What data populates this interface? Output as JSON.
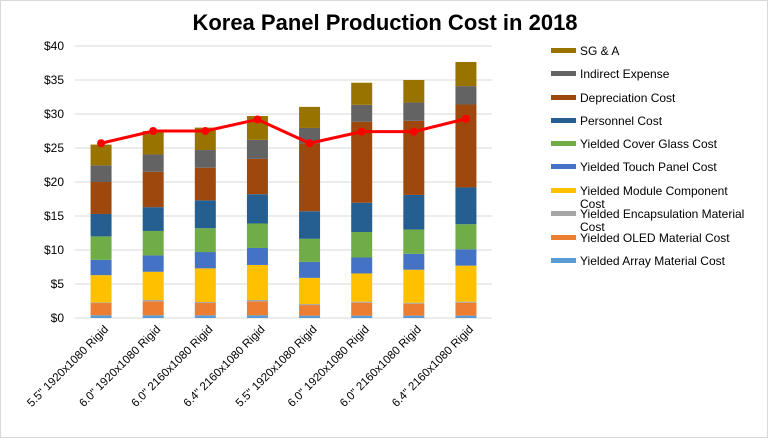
{
  "chart_data": {
    "type": "bar",
    "stacked": true,
    "title": "Korea  Panel Production Cost in 2018",
    "xlabel": "",
    "ylabel": "",
    "ylim": [
      0,
      40
    ],
    "yticks": [
      "$0",
      "$5",
      "$10",
      "$15",
      "$20",
      "$25",
      "$30",
      "$35",
      "$40"
    ],
    "ytick_values": [
      0,
      5,
      10,
      15,
      20,
      25,
      30,
      35,
      40
    ],
    "grid": true,
    "legend_position": "right",
    "categories": [
      "5.5\" 1920x1080 Rigid",
      "6.0\" 1920x1080 Rigid",
      "6.0\" 2160x1080 Rigid",
      "6.4\" 2160x1080 Rigid",
      "5.5\" 1920x1080 Rigid",
      "6.0\" 1920x1080 Rigid",
      "6.0\" 2160x1080 Rigid",
      "6.4\" 2160x1080 Rigid"
    ],
    "series": [
      {
        "name": "Yielded Array Material Cost",
        "color": "#5B9BD5",
        "values": [
          0.4,
          0.4,
          0.4,
          0.4,
          0.35,
          0.35,
          0.35,
          0.35
        ]
      },
      {
        "name": "Yielded OLED Material Cost",
        "color": "#ED7D31",
        "values": [
          1.8,
          2.05,
          1.8,
          2.05,
          1.55,
          1.9,
          1.75,
          1.9
        ]
      },
      {
        "name": "Yielded Encapsulation Material Cost",
        "color": "#A5A5A5",
        "values": [
          0.1,
          0.2,
          0.15,
          0.2,
          0.15,
          0.15,
          0.15,
          0.15
        ]
      },
      {
        "name": "Yielded Module Component Cost",
        "color": "#FFC000",
        "values": [
          4.0,
          4.15,
          4.95,
          5.15,
          3.85,
          4.15,
          4.85,
          5.3
        ]
      },
      {
        "name": "Yielded Touch Panel Cost",
        "color": "#4472C4",
        "values": [
          2.25,
          2.4,
          2.4,
          2.5,
          2.35,
          2.35,
          2.35,
          2.4
        ]
      },
      {
        "name": "Yielded Cover Glass Cost",
        "color": "#70AD47",
        "values": [
          3.45,
          3.6,
          3.5,
          3.6,
          3.4,
          3.75,
          3.55,
          3.7
        ]
      },
      {
        "name": "Personnel Cost",
        "color": "#255E91",
        "values": [
          3.3,
          3.5,
          4.1,
          4.3,
          4.05,
          4.3,
          5.1,
          5.4
        ]
      },
      {
        "name": "Depreciation Cost",
        "color": "#9E480E",
        "values": [
          4.7,
          5.2,
          4.8,
          5.2,
          9.95,
          11.9,
          10.9,
          12.2
        ]
      },
      {
        "name": "Indirect Expense",
        "color": "#636363",
        "values": [
          2.45,
          2.55,
          2.6,
          2.8,
          2.3,
          2.5,
          2.7,
          2.7
        ]
      },
      {
        "name": "SG & A",
        "color": "#997300",
        "values": [
          3.05,
          3.45,
          3.3,
          3.5,
          3.1,
          3.25,
          3.3,
          3.55
        ]
      }
    ],
    "line_series": {
      "type": "line",
      "color": "#FF0000",
      "values": [
        25.7,
        27.5,
        27.5,
        29.2,
        25.7,
        27.4,
        27.4,
        29.3
      ]
    },
    "legend": [
      {
        "label": "SG & A",
        "color": "#997300"
      },
      {
        "label": "Indirect Expense",
        "color": "#636363"
      },
      {
        "label": "Depreciation Cost",
        "color": "#9E480E"
      },
      {
        "label": "Personnel Cost",
        "color": "#255E91"
      },
      {
        "label": "Yielded Cover Glass Cost",
        "color": "#70AD47"
      },
      {
        "label": "Yielded Touch Panel Cost",
        "color": "#4472C4"
      },
      {
        "label": "Yielded Module Component",
        "label2": "Cost",
        "color": "#FFC000"
      },
      {
        "label": "Yielded Encapsulation Material",
        "label2": "Cost",
        "color": "#A5A5A5"
      },
      {
        "label": "Yielded OLED Material Cost",
        "color": "#ED7D31"
      },
      {
        "label": "Yielded Array Material Cost",
        "color": "#5B9BD5"
      }
    ]
  }
}
